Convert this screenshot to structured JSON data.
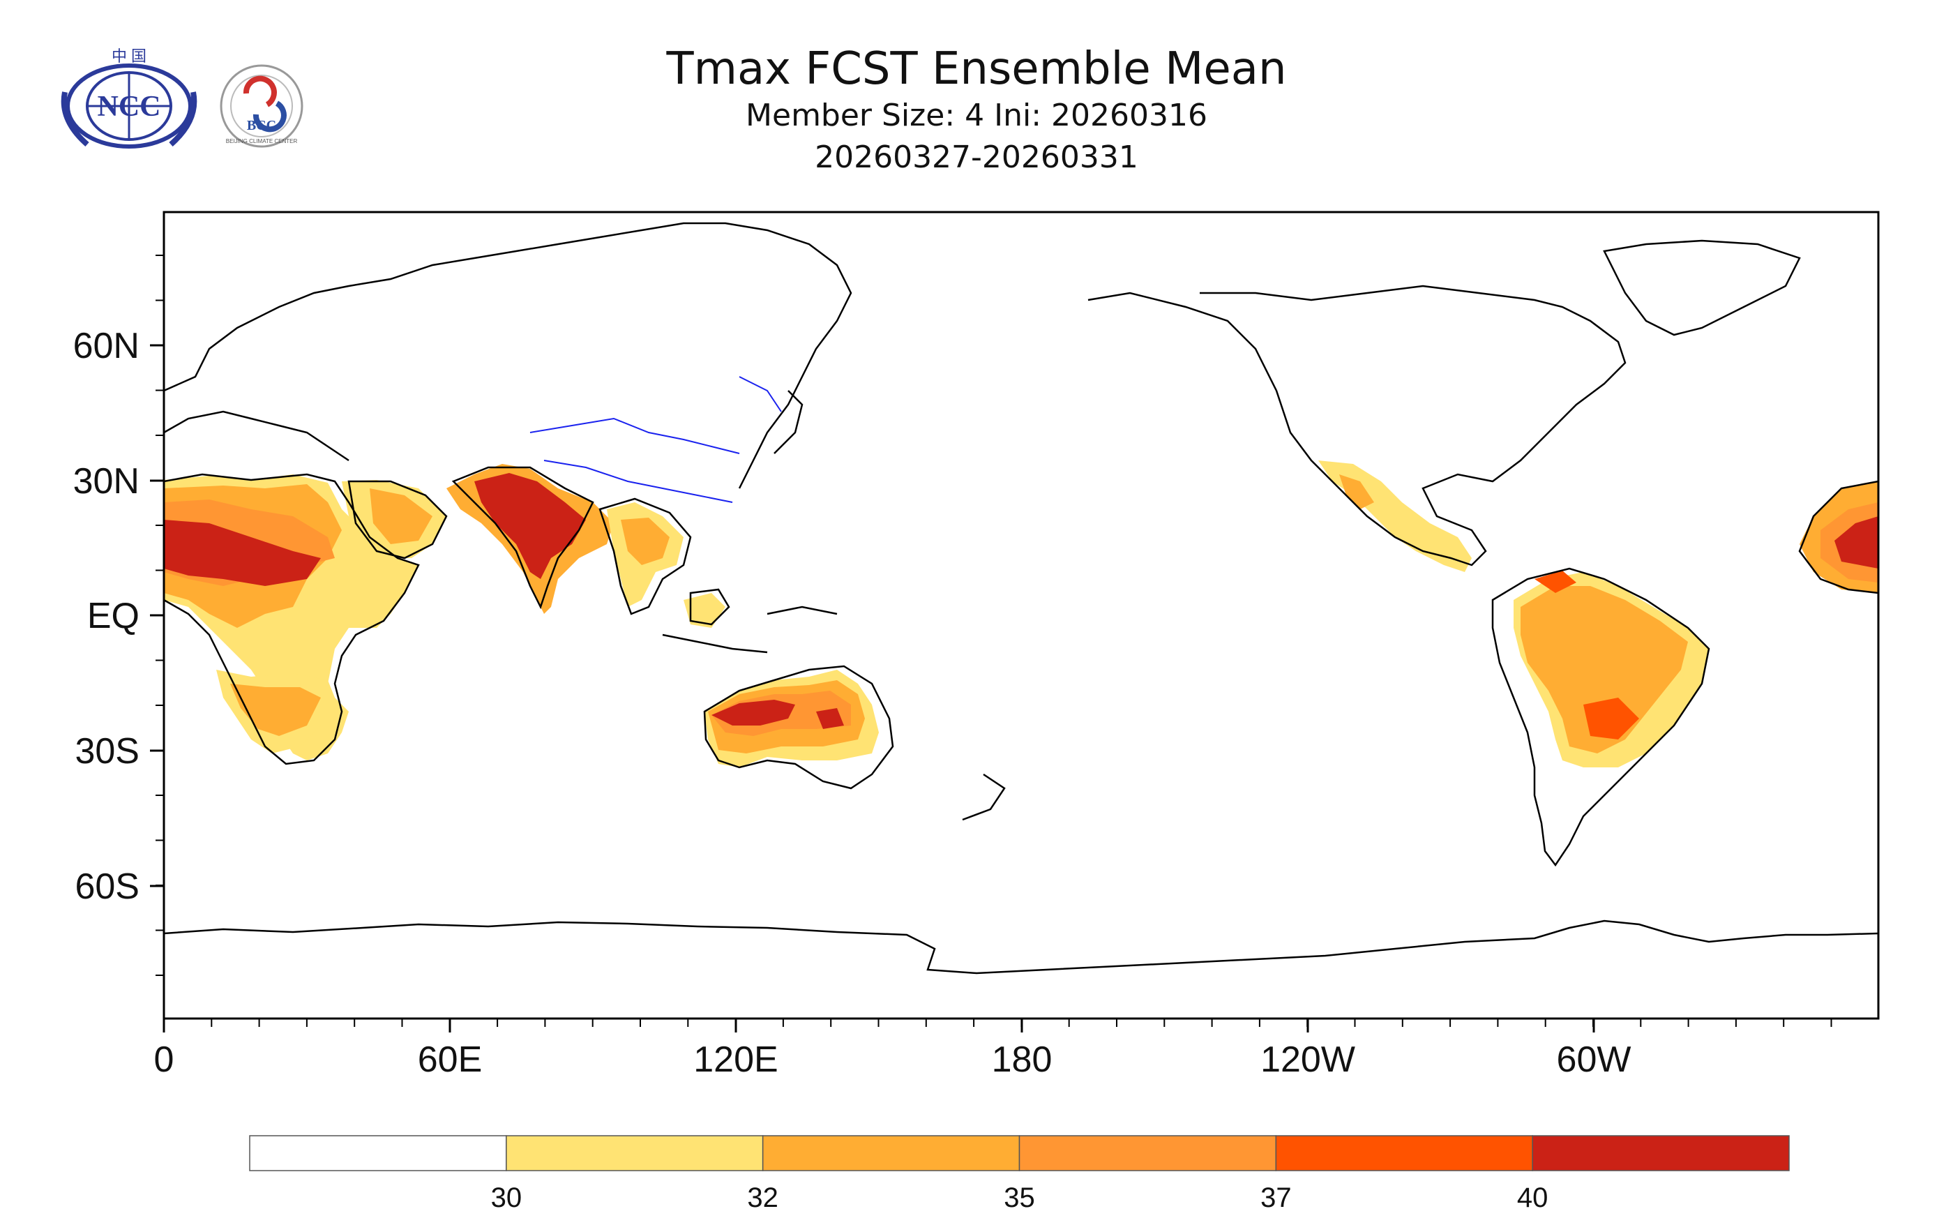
{
  "header": {
    "title": "Tmax FCST Ensemble Mean",
    "subtitle_line1": "Member Size: 4  Ini: 20260316",
    "subtitle_line2": "20260327-20260331"
  },
  "logos": {
    "ncc": {
      "text": "NCC",
      "top_text": "中 国"
    },
    "bcc": {
      "text": "BCC",
      "ring_text": "BEIJING CLIMATE CENTER"
    }
  },
  "axes": {
    "y_labels": [
      "60N",
      "30N",
      "EQ",
      "30S",
      "60S"
    ],
    "x_labels": [
      "0",
      "60E",
      "120E",
      "180",
      "120W",
      "60W"
    ]
  },
  "legend": {
    "thresholds": [
      "30",
      "32",
      "35",
      "37",
      "40"
    ],
    "colors": [
      "#ffffff",
      "#ffe373",
      "#ffad33",
      "#ff9633",
      "#ff5300",
      "#cb2216"
    ]
  }
}
